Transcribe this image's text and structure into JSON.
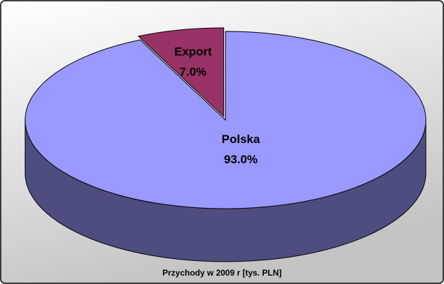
{
  "chart_data": {
    "type": "pie",
    "title": "Przychody w 2009 r [tys. PLN]",
    "categories": [
      "Polska",
      "Export"
    ],
    "values": [
      93.0,
      7.0
    ],
    "value_labels": [
      "93.0%",
      "7.0%"
    ],
    "colors": [
      "#9999ff",
      "#993366"
    ]
  }
}
